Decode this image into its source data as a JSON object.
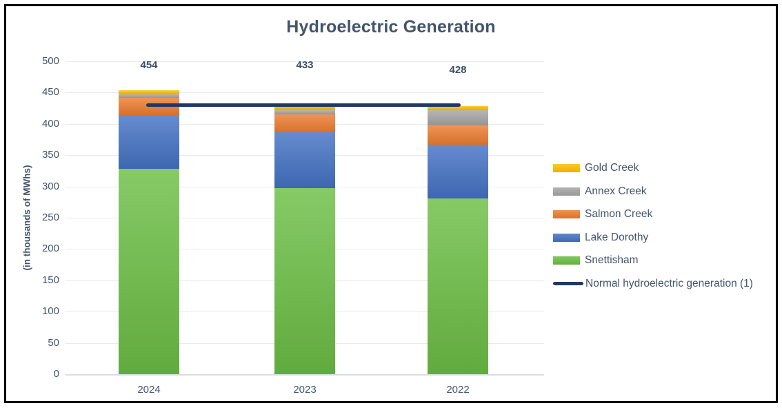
{
  "title": "Hydroelectric Generation",
  "y_axis_title": "(in thousands of MWhs)",
  "chart_data": {
    "type": "bar",
    "subtype": "stacked-column-with-line",
    "title": "Hydroelectric Generation",
    "ylabel": "(in thousands of MWhs)",
    "xlabel": "",
    "categories": [
      "2024",
      "2023",
      "2022"
    ],
    "series": [
      {
        "name": "Snettisham",
        "color": "#6cbe45",
        "values": [
          328,
          297,
          281
        ]
      },
      {
        "name": "Lake Dorothy",
        "color": "#4472c4",
        "values": [
          86,
          90,
          86
        ]
      },
      {
        "name": "Salmon Creek",
        "color": "#ed7d31",
        "values": [
          28,
          28,
          31
        ]
      },
      {
        "name": "Annex Creek",
        "color": "#a6a6a6",
        "values": [
          5,
          7,
          24
        ]
      },
      {
        "name": "Gold Creek",
        "color": "#ffc000",
        "values": [
          7,
          11,
          6
        ]
      }
    ],
    "stack_totals": [
      454,
      433,
      428
    ],
    "line_series": {
      "name": "Normal hydroelectric generation (1)",
      "color": "#203864",
      "values": [
        430,
        430,
        430
      ]
    },
    "ylim": [
      0,
      500
    ],
    "yticks": [
      0,
      50,
      100,
      150,
      200,
      250,
      300,
      350,
      400,
      450,
      500
    ],
    "grid": true,
    "legend_position": "right",
    "legend_order": [
      "Gold Creek",
      "Annex Creek",
      "Salmon Creek",
      "Lake Dorothy",
      "Snettisham",
      "Normal hydroelectric generation (1)"
    ]
  },
  "colors": {
    "text": "#44546a",
    "data_label": "#3f4f68",
    "gridline": "#e7eaee",
    "axis_line": "#d9dde2",
    "frame_border": "#000000",
    "background": "#ffffff"
  }
}
